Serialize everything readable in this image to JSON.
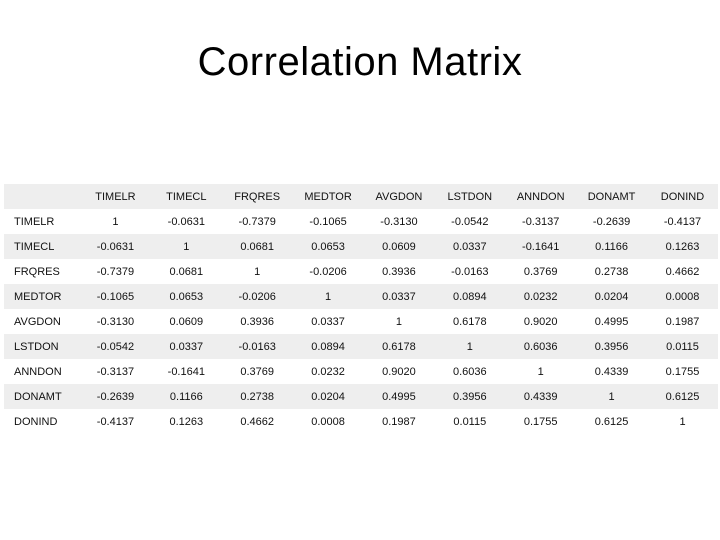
{
  "title": "Correlation Matrix",
  "chart_data": {
    "type": "table",
    "title": "Correlation Matrix",
    "columns": [
      "TIMELR",
      "TIMECL",
      "FRQRES",
      "MEDTOR",
      "AVGDON",
      "LSTDON",
      "ANNDON",
      "DONAMT",
      "DONIND"
    ],
    "rows": [
      {
        "label": "TIMELR",
        "values": [
          "1",
          "-0.0631",
          "-0.7379",
          "-0.1065",
          "-0.3130",
          "-0.0542",
          "-0.3137",
          "-0.2639",
          "-0.4137"
        ]
      },
      {
        "label": "TIMECL",
        "values": [
          "-0.0631",
          "1",
          "0.0681",
          "0.0653",
          "0.0609",
          "0.0337",
          "-0.1641",
          "0.1166",
          "0.1263"
        ]
      },
      {
        "label": "FRQRES",
        "values": [
          "-0.7379",
          "0.0681",
          "1",
          "-0.0206",
          "0.3936",
          "-0.0163",
          "0.3769",
          "0.2738",
          "0.4662"
        ]
      },
      {
        "label": "MEDTOR",
        "values": [
          "-0.1065",
          "0.0653",
          "-0.0206",
          "1",
          "0.0337",
          "0.0894",
          "0.0232",
          "0.0204",
          "0.0008"
        ]
      },
      {
        "label": "AVGDON",
        "values": [
          "-0.3130",
          "0.0609",
          "0.3936",
          "0.0337",
          "1",
          "0.6178",
          "0.9020",
          "0.4995",
          "0.1987"
        ]
      },
      {
        "label": "LSTDON",
        "values": [
          "-0.0542",
          "0.0337",
          "-0.0163",
          "0.0894",
          "0.6178",
          "1",
          "0.6036",
          "0.3956",
          "0.0115"
        ]
      },
      {
        "label": "ANNDON",
        "values": [
          "-0.3137",
          "-0.1641",
          "0.3769",
          "0.0232",
          "0.9020",
          "0.6036",
          "1",
          "0.4339",
          "0.1755"
        ]
      },
      {
        "label": "DONAMT",
        "values": [
          "-0.2639",
          "0.1166",
          "0.2738",
          "0.0204",
          "0.4995",
          "0.3956",
          "0.4339",
          "1",
          "0.6125"
        ]
      },
      {
        "label": "DONIND",
        "values": [
          "-0.4137",
          "0.1263",
          "0.4662",
          "0.0008",
          "0.1987",
          "0.0115",
          "0.1755",
          "0.6125",
          "1"
        ]
      }
    ]
  }
}
